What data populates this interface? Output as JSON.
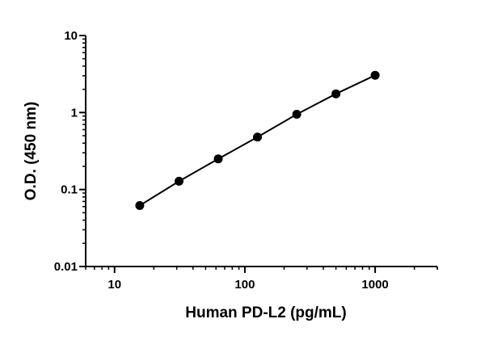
{
  "chart_data": {
    "type": "scatter",
    "xlabel": "Human PD-L2 (pg/mL)",
    "ylabel": "O.D. (450 nm)",
    "x_scale": "log",
    "y_scale": "log",
    "xlim": [
      6,
      3000
    ],
    "ylim": [
      0.01,
      10
    ],
    "x_ticks": [
      10,
      100,
      1000
    ],
    "x_tick_labels": [
      "10",
      "100",
      "1000"
    ],
    "y_ticks": [
      0.01,
      0.1,
      1,
      10
    ],
    "y_tick_labels": [
      "0.01",
      "0.1",
      "1",
      "10"
    ],
    "grid": false,
    "legend": "none",
    "series": [
      {
        "x": [
          15.6,
          31.25,
          62.5,
          125,
          250,
          500,
          1000
        ],
        "y": [
          0.062,
          0.128,
          0.25,
          0.48,
          0.95,
          1.75,
          3.05
        ],
        "marker": "circle",
        "line": "fitted curve",
        "color": "#000000"
      }
    ]
  }
}
